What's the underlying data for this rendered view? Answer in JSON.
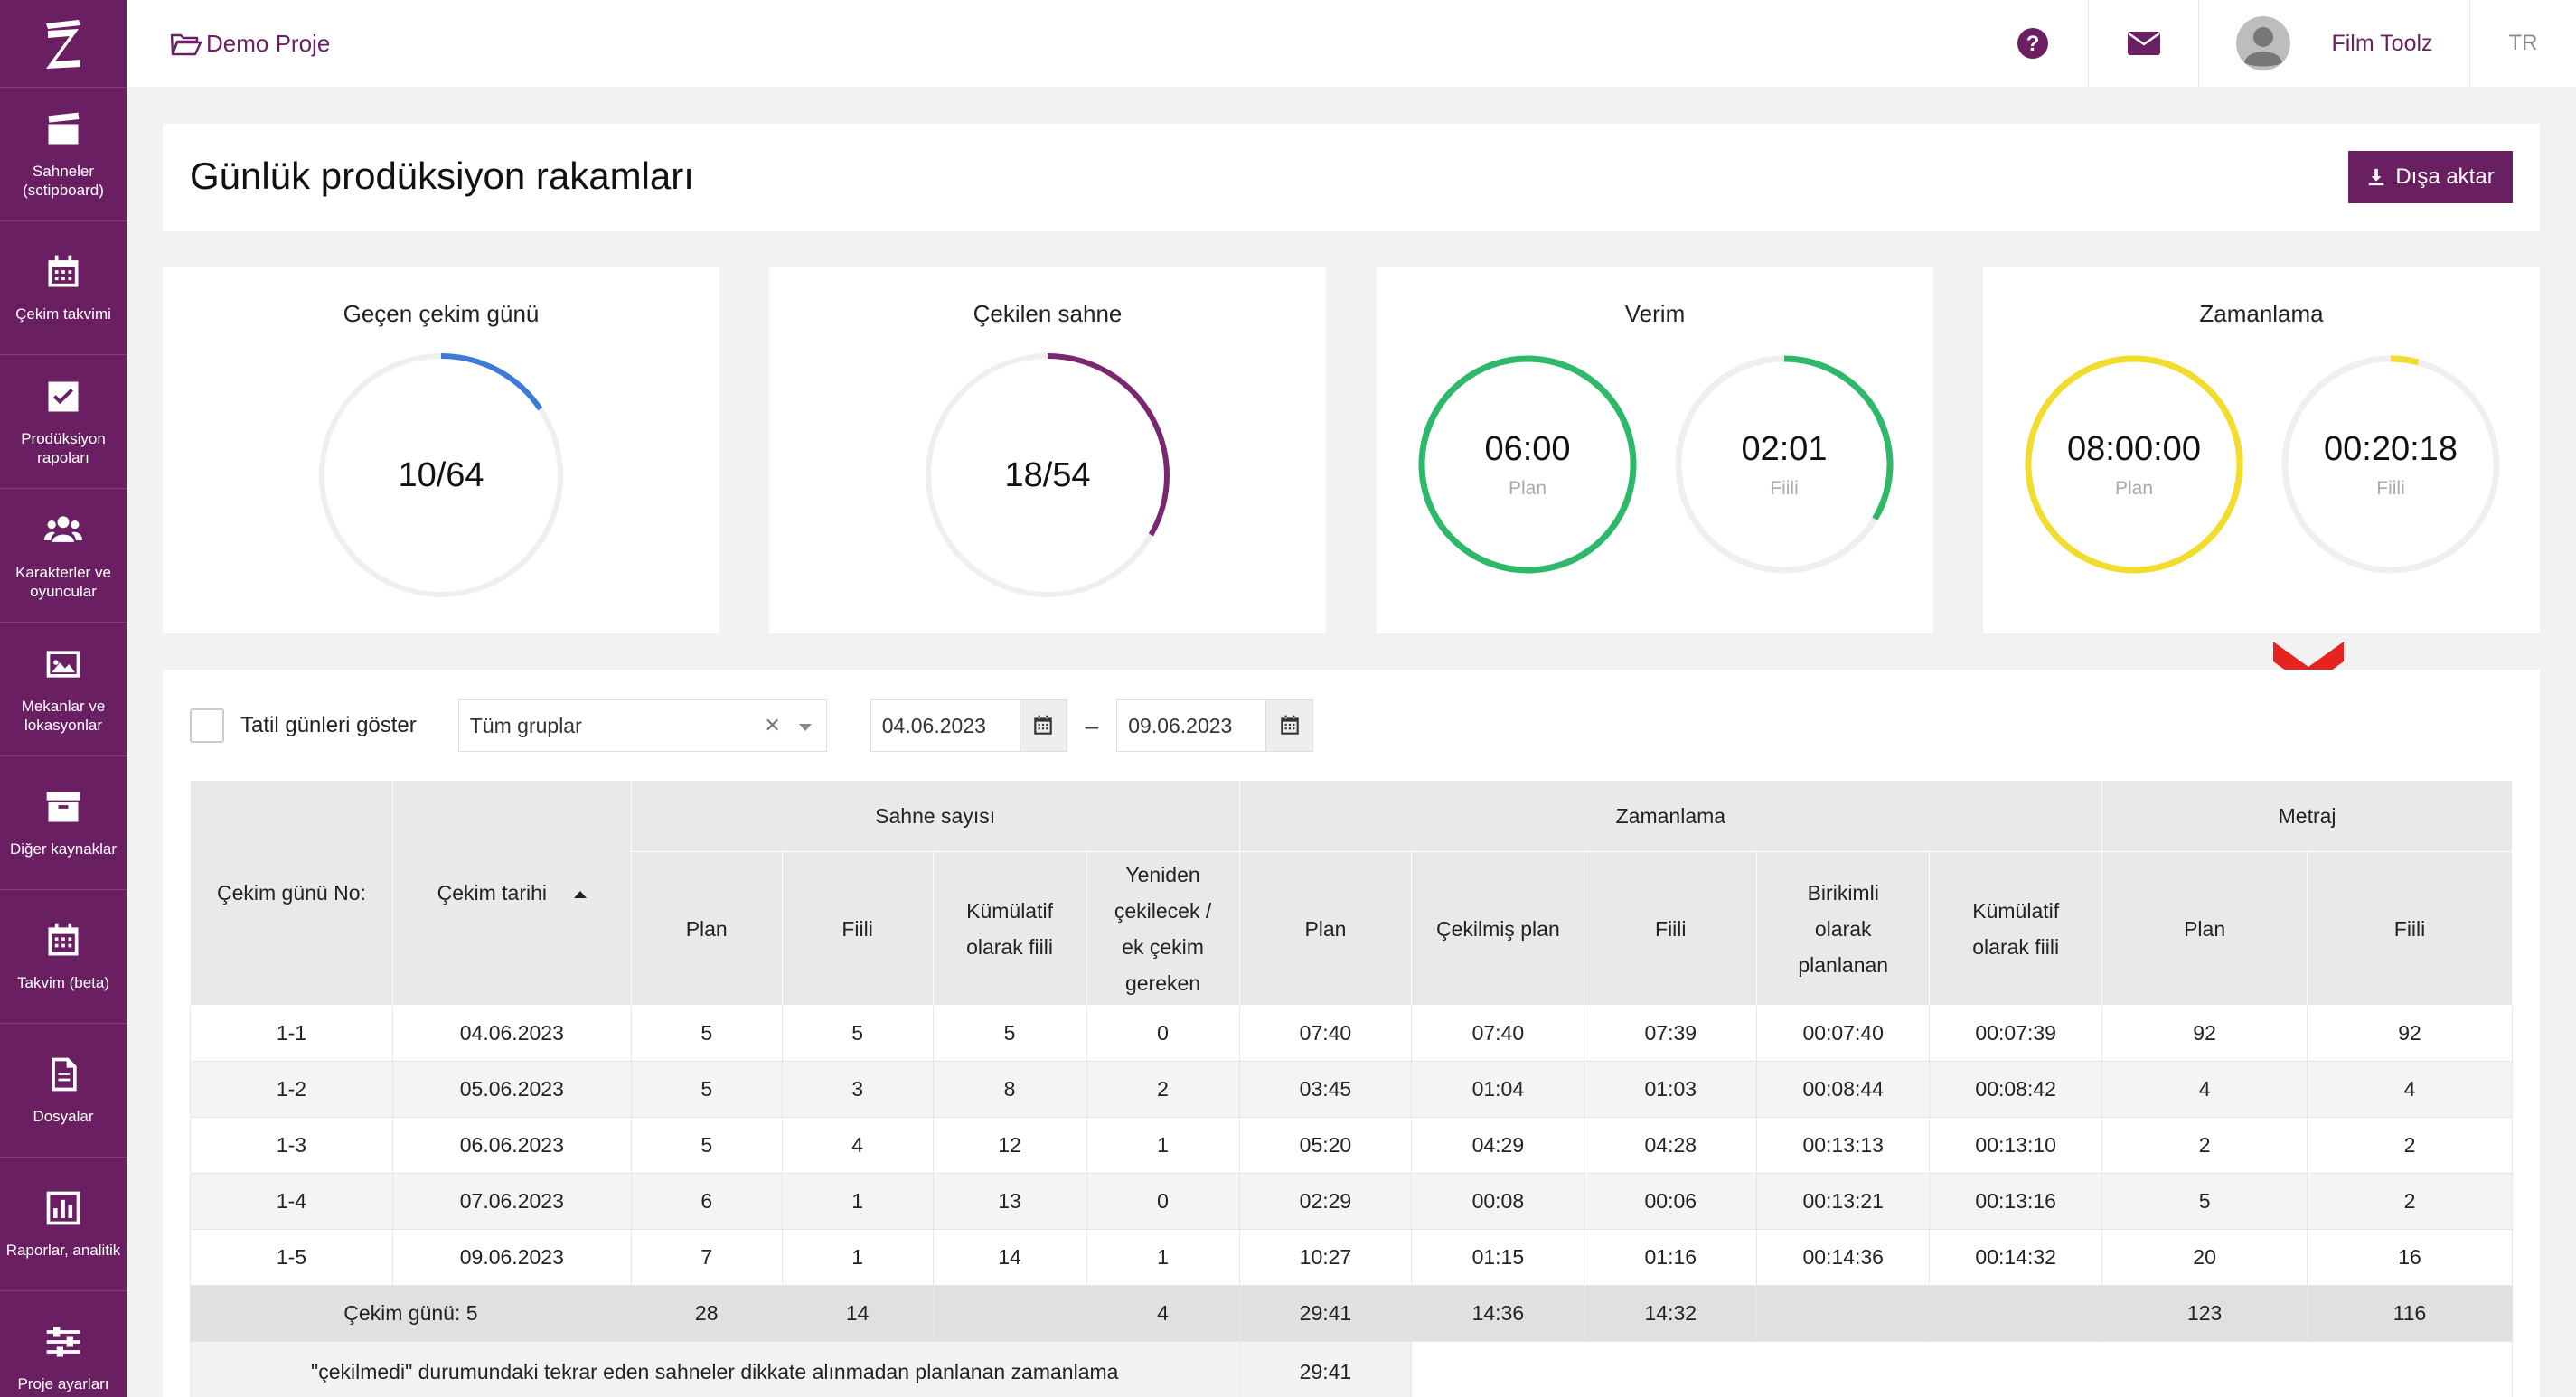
{
  "sidebar": {
    "logo": "Z",
    "items": [
      {
        "label": "Sahneler (sctipboard)",
        "icon": "clapperboard-icon"
      },
      {
        "label": "Çekim takvimi",
        "icon": "calendar-icon"
      },
      {
        "label": "Prodüksiyon rapoları",
        "icon": "checkbox-icon"
      },
      {
        "label": "Karakterler ve oyuncular",
        "icon": "users-icon"
      },
      {
        "label": "Mekanlar ve lokasyonlar",
        "icon": "image-icon"
      },
      {
        "label": "Diğer kaynaklar",
        "icon": "archive-icon"
      },
      {
        "label": "Takvim (beta)",
        "icon": "calendar-grid-icon"
      },
      {
        "label": "Dosyalar",
        "icon": "document-icon"
      },
      {
        "label": "Raporlar, analitik",
        "icon": "bar-chart-icon"
      },
      {
        "label": "Proje ayarları",
        "icon": "sliders-icon"
      }
    ]
  },
  "header": {
    "project": "Demo Proje",
    "user": "Film Toolz",
    "lang": "TR"
  },
  "page": {
    "title": "Günlük prodüksiyon rakamları",
    "export_label": "Dışa aktar"
  },
  "stats": {
    "shooting_days": {
      "title": "Geçen çekim günü",
      "value": "10/64",
      "fraction": 0.156,
      "color": "#3d7bd8"
    },
    "scenes_shot": {
      "title": "Çekilen sahne",
      "value": "18/54",
      "fraction": 0.333,
      "color": "#7a2670"
    },
    "efficiency": {
      "title": "Verim",
      "plan": "06:00",
      "plan_label": "Plan",
      "actual": "02:01",
      "actual_label": "Fiili",
      "plan_fraction": 1.0,
      "actual_fraction": 0.336,
      "color": "#2eb86a"
    },
    "timing": {
      "title": "Zamanlama",
      "plan": "08:00:00",
      "plan_label": "Plan",
      "actual": "00:20:18",
      "actual_label": "Fiili",
      "plan_fraction": 1.0,
      "actual_fraction": 0.042,
      "color": "#f2dc2c"
    }
  },
  "filters": {
    "holidays_label": "Tatil günleri göster",
    "group": "Tüm gruplar",
    "date_from": "04.06.2023",
    "date_to": "09.06.2023",
    "dash": "–"
  },
  "table": {
    "headers": {
      "day_no": "Çekim günü No:",
      "date": "Çekim tarihi",
      "scene_count": "Sahne sayısı",
      "timing": "Zamanlama",
      "footage": "Metraj",
      "sc_plan": "Plan",
      "sc_actual": "Fiili",
      "sc_cum_actual": "Kümülatif olarak fiili",
      "sc_reshoot": "Yeniden çekilecek / ek çekim gereken",
      "t_plan": "Plan",
      "t_shot_plan": "Çekilmiş plan",
      "t_actual": "Fiili",
      "t_cum_plan": "Birikimli olarak planlanan",
      "t_cum_actual": "Kümülatif olarak fiili",
      "m_plan": "Plan",
      "m_actual": "Fiili"
    },
    "rows": [
      [
        "1-1",
        "04.06.2023",
        "5",
        "5",
        "5",
        "0",
        "07:40",
        "07:40",
        "07:39",
        "00:07:40",
        "00:07:39",
        "92",
        "92"
      ],
      [
        "1-2",
        "05.06.2023",
        "5",
        "3",
        "8",
        "2",
        "03:45",
        "01:04",
        "01:03",
        "00:08:44",
        "00:08:42",
        "4",
        "4"
      ],
      [
        "1-3",
        "06.06.2023",
        "5",
        "4",
        "12",
        "1",
        "05:20",
        "04:29",
        "04:28",
        "00:13:13",
        "00:13:10",
        "2",
        "2"
      ],
      [
        "1-4",
        "07.06.2023",
        "6",
        "1",
        "13",
        "0",
        "02:29",
        "00:08",
        "00:06",
        "00:13:21",
        "00:13:16",
        "5",
        "2"
      ],
      [
        "1-5",
        "09.06.2023",
        "7",
        "1",
        "14",
        "1",
        "10:27",
        "01:15",
        "01:16",
        "00:14:36",
        "00:14:32",
        "20",
        "16"
      ]
    ],
    "totals": {
      "label": "Çekim günü: 5",
      "sc_plan": "28",
      "sc_actual": "14",
      "sc_reshoot": "4",
      "t_plan": "29:41",
      "t_shot_plan": "14:36",
      "t_actual": "14:32",
      "m_plan": "123",
      "m_actual": "116"
    },
    "note": {
      "label": "\"çekilmedi\" durumundaki tekrar eden sahneler dikkate alınmadan planlanan zamanlama",
      "value": "29:41"
    }
  },
  "colors": {
    "brand": "#6b1f63",
    "chevron": "#e52420"
  }
}
